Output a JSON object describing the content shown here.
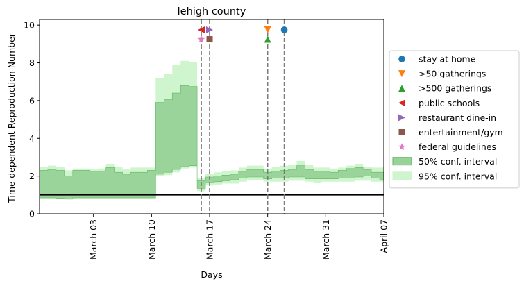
{
  "chart_data": {
    "type": "area",
    "title": "lehigh county",
    "xlabel": "Days",
    "ylabel": "Time-dependent Reproduction Number",
    "x_tick_labels": [
      "March 03",
      "March 10",
      "March 17",
      "March 24",
      "March 31",
      "April 07"
    ],
    "x_tick_days": [
      3,
      10,
      17,
      24,
      31,
      38
    ],
    "xlim_days": [
      -3.5,
      38
    ],
    "y_ticks": [
      0,
      2,
      4,
      6,
      8,
      10
    ],
    "ylim": [
      0,
      10.3
    ],
    "reference_line": 1,
    "colors": {
      "band50": "#98d298",
      "band50_edge": "#5fb85f",
      "band95": "#cff5cf",
      "vline": "#7a7a7a",
      "refline": "#000000"
    },
    "x_days": [
      -3.5,
      -2.5,
      -1.5,
      -0.5,
      0.5,
      1.5,
      2.5,
      3.5,
      4.5,
      5.5,
      6.5,
      7.5,
      8.5,
      9.5,
      10.5,
      11.5,
      12.5,
      13.5,
      14.5,
      15.5,
      16.5,
      17.5,
      18.5,
      19.5,
      20.5,
      21.5,
      22.5,
      23.5,
      24.5,
      25.5,
      26.5,
      27.5,
      28.5,
      29.5,
      30.5,
      31.5,
      32.5,
      33.5,
      34.5,
      35.5,
      36.5,
      37.5,
      38
    ],
    "bands": {
      "q95_lo": [
        0.8,
        0.8,
        0.78,
        0.75,
        0.8,
        0.8,
        0.8,
        0.8,
        0.8,
        0.8,
        0.8,
        0.8,
        0.8,
        0.8,
        2.0,
        2.05,
        2.2,
        2.4,
        2.45,
        1.2,
        1.5,
        1.55,
        1.6,
        1.6,
        1.7,
        1.8,
        1.8,
        1.7,
        1.7,
        1.7,
        1.75,
        1.75,
        1.7,
        1.65,
        1.7,
        1.7,
        1.7,
        1.7,
        1.75,
        1.75,
        1.7,
        1.7,
        1.7
      ],
      "q50_lo": [
        0.85,
        0.85,
        0.82,
        0.8,
        0.85,
        0.85,
        0.85,
        0.85,
        0.85,
        0.85,
        0.85,
        0.85,
        0.85,
        0.85,
        2.1,
        2.2,
        2.35,
        2.5,
        2.55,
        1.35,
        1.65,
        1.7,
        1.75,
        1.8,
        1.9,
        1.95,
        1.95,
        1.85,
        1.9,
        1.9,
        1.95,
        1.95,
        1.85,
        1.85,
        1.85,
        1.85,
        1.9,
        1.9,
        1.95,
        2.0,
        1.9,
        1.8,
        1.8
      ],
      "q50_hi": [
        2.3,
        2.35,
        2.3,
        2.0,
        2.3,
        2.3,
        2.25,
        2.25,
        2.45,
        2.2,
        2.1,
        2.2,
        2.2,
        2.3,
        5.9,
        6.05,
        6.4,
        6.8,
        6.75,
        1.75,
        1.95,
        2.0,
        2.05,
        2.1,
        2.25,
        2.35,
        2.35,
        2.2,
        2.25,
        2.3,
        2.35,
        2.55,
        2.35,
        2.25,
        2.25,
        2.2,
        2.3,
        2.4,
        2.45,
        2.35,
        2.2,
        2.2,
        2.2
      ],
      "q95_hi": [
        2.5,
        2.55,
        2.5,
        2.3,
        2.4,
        2.4,
        2.35,
        2.4,
        2.65,
        2.5,
        2.35,
        2.45,
        2.45,
        2.45,
        7.2,
        7.4,
        7.9,
        8.1,
        8.05,
        1.9,
        2.1,
        2.2,
        2.25,
        2.3,
        2.45,
        2.55,
        2.55,
        2.4,
        2.5,
        2.55,
        2.6,
        2.8,
        2.6,
        2.45,
        2.45,
        2.4,
        2.45,
        2.55,
        2.65,
        2.5,
        2.45,
        2.45,
        2.45
      ]
    },
    "interventions": [
      {
        "name": "stay at home",
        "day": 26,
        "marker": "circle",
        "color": "#1f77b4",
        "y": 9.75
      },
      {
        "name": ">50 gatherings",
        "day": 24,
        "marker": "triangle-down",
        "color": "#ff7f0e",
        "y": 9.75
      },
      {
        "name": ">500 gatherings",
        "day": 24,
        "marker": "triangle-up",
        "color": "#2ca02c",
        "y": 9.25
      },
      {
        "name": "public schools",
        "day": 16,
        "marker": "triangle-left",
        "color": "#d62728",
        "y": 9.75
      },
      {
        "name": "restaurant dine-in",
        "day": 17,
        "marker": "triangle-right",
        "color": "#9467bd",
        "y": 9.75
      },
      {
        "name": "entertainment/gym",
        "day": 17,
        "marker": "square",
        "color": "#8c564b",
        "y": 9.25
      },
      {
        "name": "federal guidelines",
        "day": 16,
        "marker": "star",
        "color": "#e377c2",
        "y": 9.25
      }
    ],
    "vlines_days": [
      16,
      17,
      24,
      26
    ],
    "legend": {
      "placement": "right",
      "entries": [
        {
          "label": "stay at home",
          "marker": "circle",
          "color": "#1f77b4"
        },
        {
          "label": ">50 gatherings",
          "marker": "triangle-down",
          "color": "#ff7f0e"
        },
        {
          "label": ">500 gatherings",
          "marker": "triangle-up",
          "color": "#2ca02c"
        },
        {
          "label": "public schools",
          "marker": "triangle-left",
          "color": "#d62728"
        },
        {
          "label": "restaurant dine-in",
          "marker": "triangle-right",
          "color": "#9467bd"
        },
        {
          "label": "entertainment/gym",
          "marker": "square",
          "color": "#8c564b"
        },
        {
          "label": "federal guidelines",
          "marker": "star",
          "color": "#e377c2"
        },
        {
          "label": "50% conf. interval",
          "marker": "patch",
          "color": "#98d298",
          "edge": "#5fb85f"
        },
        {
          "label": "95% conf. interval",
          "marker": "patch",
          "color": "#cff5cf",
          "edge": "#cff5cf"
        }
      ]
    }
  }
}
